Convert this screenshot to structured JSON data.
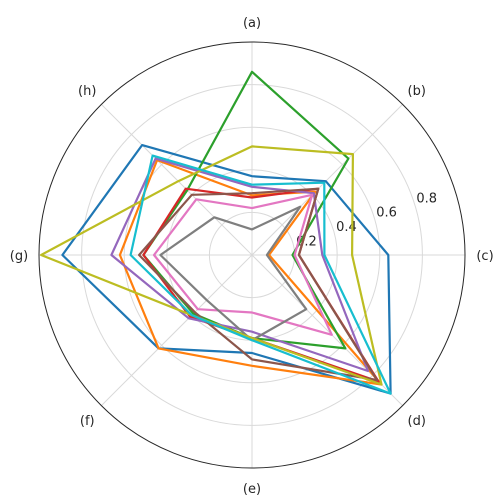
{
  "chart_data": {
    "type": "radar",
    "categories": [
      "(a)",
      "(b)",
      "(c)",
      "(d)",
      "(e)",
      "(f)",
      "(g)",
      "(h)"
    ],
    "rlim": [
      0,
      1
    ],
    "rticks": [
      0.2,
      0.4,
      0.6,
      0.8
    ],
    "rtick_labels": [
      "0.2",
      "0.4",
      "0.6",
      "0.8"
    ],
    "grid": true,
    "series": [
      {
        "color": "#1f77b4",
        "values": [
          0.37,
          0.49,
          0.64,
          0.92,
          0.46,
          0.62,
          0.89,
          0.73
        ]
      },
      {
        "color": "#ff7f0e",
        "values": [
          0.28,
          0.42,
          0.08,
          0.86,
          0.52,
          0.62,
          0.62,
          0.63
        ]
      },
      {
        "color": "#2ca02c",
        "values": [
          0.86,
          0.64,
          0.19,
          0.62,
          0.39,
          0.39,
          0.51,
          0.43
        ]
      },
      {
        "color": "#d62728",
        "values": [
          0.27,
          0.44,
          0.22,
          0.84,
          0.39,
          0.41,
          0.51,
          0.44
        ]
      },
      {
        "color": "#9467bd",
        "values": [
          0.32,
          0.41,
          0.33,
          0.77,
          0.36,
          0.42,
          0.66,
          0.64
        ]
      },
      {
        "color": "#8c564b",
        "values": [
          0.29,
          0.44,
          0.22,
          0.83,
          0.49,
          0.38,
          0.53,
          0.4
        ]
      },
      {
        "color": "#e377c2",
        "values": [
          0.22,
          0.4,
          0.2,
          0.53,
          0.27,
          0.36,
          0.46,
          0.37
        ]
      },
      {
        "color": "#7f7f7f",
        "values": [
          0.12,
          0.32,
          0.07,
          0.36,
          0.4,
          0.3,
          0.43,
          0.25
        ]
      },
      {
        "color": "#bcbd22",
        "values": [
          0.51,
          0.67,
          0.47,
          0.86,
          0.39,
          0.4,
          0.99,
          0.49
        ]
      },
      {
        "color": "#17becf",
        "values": [
          0.33,
          0.48,
          0.34,
          0.92,
          0.4,
          0.4,
          0.57,
          0.66
        ]
      }
    ]
  }
}
